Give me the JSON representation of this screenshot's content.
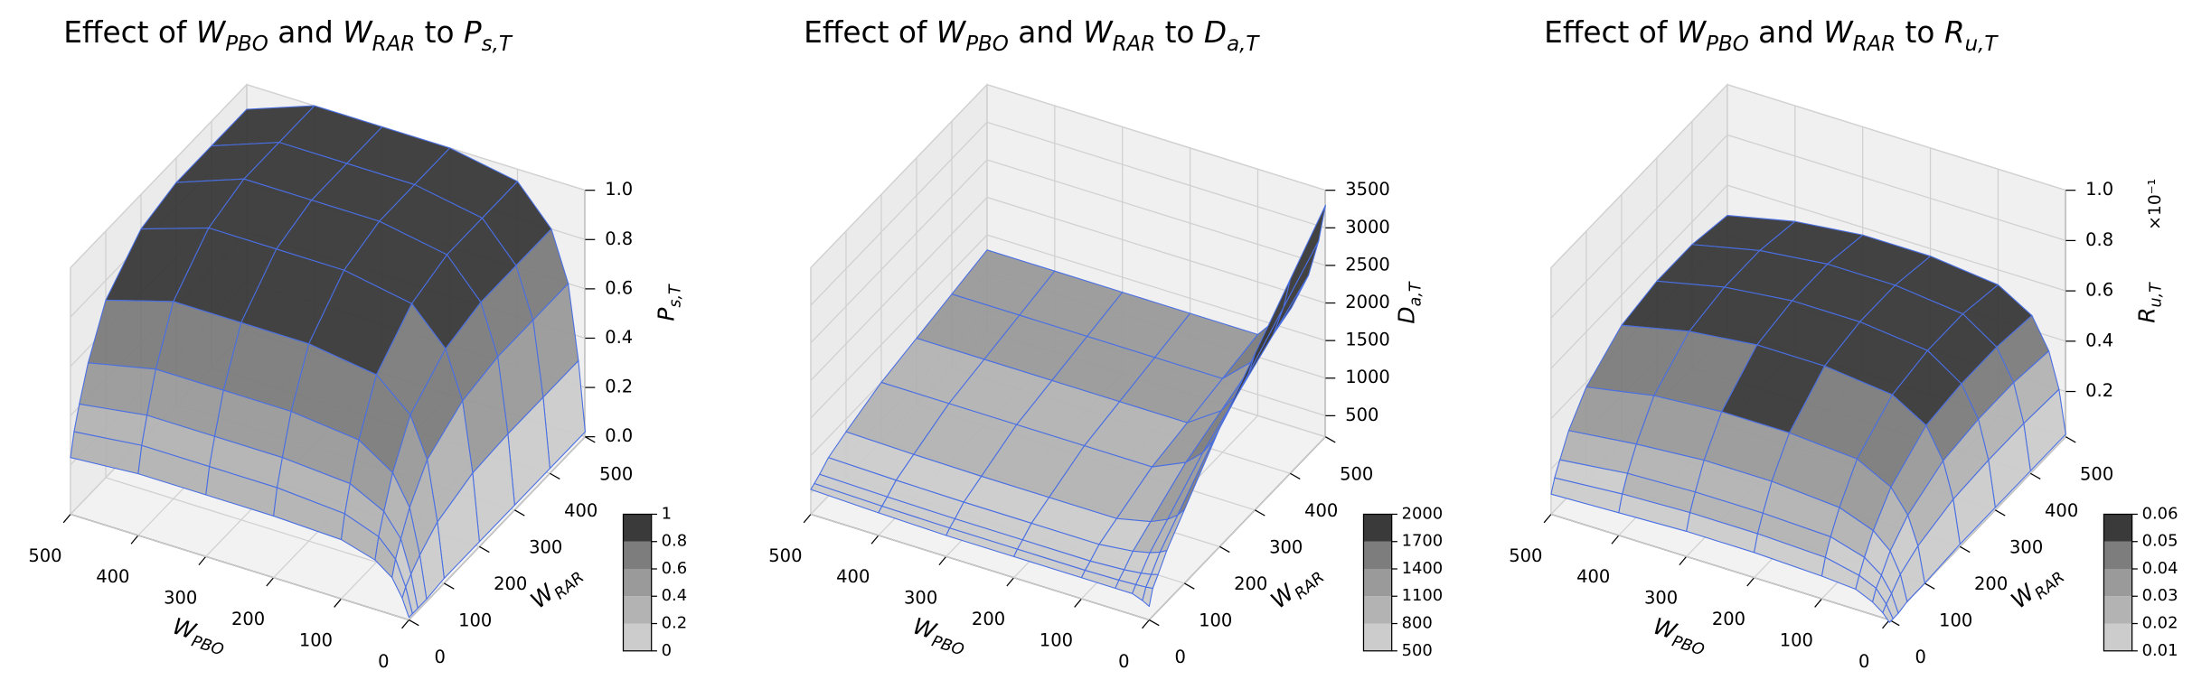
{
  "chart_data": [
    {
      "type": "surface",
      "title": [
        {
          "text": "Effect of "
        },
        {
          "text": "W",
          "sub": "PBO"
        },
        {
          "text": " and "
        },
        {
          "text": "W",
          "sub": "RAR"
        },
        {
          "text": " to "
        },
        {
          "text": "P",
          "sub": "s,T"
        }
      ],
      "xlabel": {
        "text": "W",
        "sub": "PBO"
      },
      "ylabel": {
        "text": "W",
        "sub": "RAR"
      },
      "zlabel": {
        "text": "P",
        "sub": "s,T"
      },
      "x": [
        0,
        10,
        25,
        50,
        100,
        200,
        300,
        400,
        500
      ],
      "y": [
        0,
        10,
        25,
        50,
        100,
        200,
        300,
        400,
        500
      ],
      "z": [
        [
          0.01,
          0.08,
          0.15,
          0.2,
          0.24,
          0.25,
          0.25,
          0.25,
          0.23
        ],
        [
          0.01,
          0.11,
          0.21,
          0.28,
          0.33,
          0.35,
          0.35,
          0.35,
          0.32
        ],
        [
          0.01,
          0.14,
          0.27,
          0.36,
          0.43,
          0.45,
          0.45,
          0.45,
          0.41
        ],
        [
          0.01,
          0.18,
          0.36,
          0.48,
          0.57,
          0.6,
          0.6,
          0.6,
          0.54
        ],
        [
          0.02,
          0.24,
          0.48,
          0.64,
          0.76,
          0.8,
          0.8,
          0.8,
          0.72
        ],
        [
          0.02,
          0.29,
          0.57,
          0.76,
          0.9,
          0.95,
          0.95,
          0.95,
          0.86
        ],
        [
          0.02,
          0.3,
          0.6,
          0.8,
          0.95,
          1,
          1,
          1,
          0.9
        ],
        [
          0.02,
          0.3,
          0.6,
          0.8,
          0.95,
          1,
          1,
          1,
          0.9
        ],
        [
          0.02,
          0.3,
          0.6,
          0.8,
          0.95,
          1,
          1,
          1,
          0.9
        ]
      ],
      "xlim": [
        0,
        500
      ],
      "ylim": [
        0,
        500
      ],
      "zlim": [
        0,
        1
      ],
      "xticks": [
        0,
        100,
        200,
        300,
        400,
        500
      ],
      "yticks": [
        0,
        100,
        200,
        300,
        400,
        500
      ],
      "zticks": [
        {
          "value": 0,
          "label": "0.0"
        },
        0.2,
        0.4,
        0.6,
        0.8,
        {
          "value": 1,
          "label": "1.0"
        }
      ],
      "colorbar": {
        "ticks": [
          0,
          0.2,
          0.4,
          0.6,
          0.8,
          1
        ],
        "colors": [
          "#cccccc",
          "#b3b3b3",
          "#9a9a9a",
          "#7d7d7d",
          "#3a3a3a"
        ]
      },
      "edgecolor": "#4a6fe3",
      "grid": true
    },
    {
      "type": "surface",
      "title": [
        {
          "text": "Effect of "
        },
        {
          "text": "W",
          "sub": "PBO"
        },
        {
          "text": " and "
        },
        {
          "text": "W",
          "sub": "RAR"
        },
        {
          "text": " to "
        },
        {
          "text": "D",
          "sub": "a,T"
        }
      ],
      "xlabel": {
        "text": "W",
        "sub": "PBO"
      },
      "ylabel": {
        "text": "W",
        "sub": "RAR"
      },
      "zlabel": {
        "text": "D",
        "sub": "a,T"
      },
      "x": [
        0,
        10,
        25,
        50,
        100,
        200,
        300,
        400,
        500
      ],
      "y": [
        0,
        10,
        25,
        50,
        100,
        200,
        300,
        400,
        500
      ],
      "z": [
        [
          400,
          450,
          500,
          500,
          500,
          500,
          500,
          520,
          550
        ],
        [
          590,
          580,
          570,
          560,
          550,
          550,
          550,
          560,
          580
        ],
        [
          700,
          675,
          650,
          625,
          600,
          600,
          600,
          610,
          630
        ],
        [
          900,
          850,
          800,
          750,
          700,
          700,
          700,
          710,
          730
        ],
        [
          1200,
          1100,
          1000,
          900,
          800,
          800,
          800,
          810,
          830
        ],
        [
          1800,
          1600,
          1400,
          1200,
          1000,
          1000,
          1000,
          1000,
          1000
        ],
        [
          2300,
          2000,
          1700,
          1400,
          1100,
          1100,
          1100,
          1100,
          1100
        ],
        [
          2800,
          2400,
          2000,
          1600,
          1200,
          1200,
          1200,
          1200,
          1200
        ],
        [
          3300,
          2800,
          2300,
          1800,
          1300,
          1300,
          1300,
          1300,
          1300
        ]
      ],
      "xlim": [
        0,
        500
      ],
      "ylim": [
        0,
        500
      ],
      "zlim": [
        220,
        3500
      ],
      "xticks": [
        0,
        100,
        200,
        300,
        400,
        500
      ],
      "yticks": [
        0,
        100,
        200,
        300,
        400,
        500
      ],
      "zticks": [
        500,
        1000,
        1500,
        2000,
        2500,
        3000,
        3500
      ],
      "colorbar": {
        "ticks": [
          500,
          800,
          1100,
          1400,
          1700,
          2000
        ],
        "colors": [
          "#cccccc",
          "#b3b3b3",
          "#9a9a9a",
          "#7d7d7d",
          "#3a3a3a"
        ]
      },
      "edgecolor": "#4a6fe3",
      "grid": true
    },
    {
      "type": "surface",
      "title": [
        {
          "text": "Effect of "
        },
        {
          "text": "W",
          "sub": "PBO"
        },
        {
          "text": " and "
        },
        {
          "text": "W",
          "sub": "RAR"
        },
        {
          "text": " to "
        },
        {
          "text": "R",
          "sub": "u,T"
        }
      ],
      "xlabel": {
        "text": "W",
        "sub": "PBO"
      },
      "ylabel": {
        "text": "W",
        "sub": "RAR"
      },
      "zlabel": {
        "text": "R",
        "sub": "u,T"
      },
      "offset_text": "×10⁻¹",
      "x": [
        0,
        10,
        25,
        50,
        100,
        200,
        300,
        400,
        500
      ],
      "y": [
        0,
        10,
        25,
        50,
        100,
        200,
        300,
        400,
        500
      ],
      "z": [
        [
          0.001,
          0.004,
          0.007,
          0.01,
          0.011,
          0.012,
          0.012,
          0.011,
          0.01
        ],
        [
          0.001,
          0.006,
          0.011,
          0.014,
          0.017,
          0.018,
          0.018,
          0.017,
          0.015
        ],
        [
          0.001,
          0.008,
          0.014,
          0.019,
          0.023,
          0.024,
          0.024,
          0.023,
          0.02
        ],
        [
          0.002,
          0.012,
          0.02,
          0.026,
          0.031,
          0.033,
          0.033,
          0.031,
          0.028
        ],
        [
          0.002,
          0.016,
          0.027,
          0.036,
          0.043,
          0.045,
          0.045,
          0.043,
          0.038
        ],
        [
          0.003,
          0.02,
          0.034,
          0.046,
          0.054,
          0.057,
          0.057,
          0.054,
          0.048
        ],
        [
          0.003,
          0.021,
          0.036,
          0.048,
          0.057,
          0.06,
          0.06,
          0.057,
          0.051
        ],
        [
          0.003,
          0.021,
          0.036,
          0.048,
          0.057,
          0.06,
          0.06,
          0.057,
          0.051
        ],
        [
          0.003,
          0.02,
          0.034,
          0.046,
          0.054,
          0.057,
          0.057,
          0.054,
          0.048
        ]
      ],
      "xlim": [
        0,
        500
      ],
      "ylim": [
        0,
        500
      ],
      "zlim": [
        0.002,
        0.1
      ],
      "xticks": [
        0,
        100,
        200,
        300,
        400,
        500
      ],
      "yticks": [
        0,
        100,
        200,
        300,
        400,
        500
      ],
      "zticks": [
        {
          "value": 0.02,
          "label": "0.2"
        },
        {
          "value": 0.04,
          "label": "0.4"
        },
        {
          "value": 0.06,
          "label": "0.6"
        },
        {
          "value": 0.08,
          "label": "0.8"
        },
        {
          "value": 0.1,
          "label": "1.0"
        }
      ],
      "colorbar": {
        "ticks": [
          0.01,
          0.02,
          0.03,
          0.04,
          0.05,
          0.06
        ],
        "colors": [
          "#cccccc",
          "#b3b3b3",
          "#9a9a9a",
          "#7d7d7d",
          "#3a3a3a"
        ]
      },
      "edgecolor": "#4a6fe3",
      "grid": true
    }
  ]
}
